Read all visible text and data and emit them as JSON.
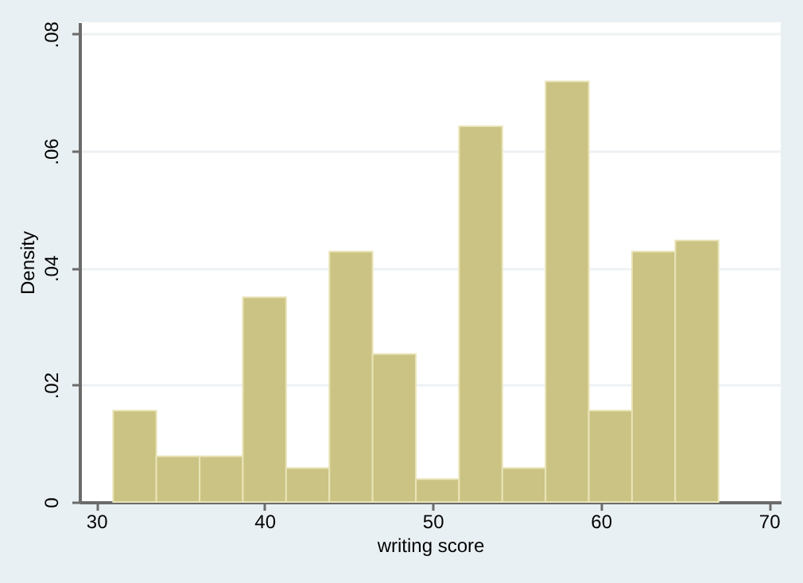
{
  "chart_data": {
    "type": "histogram",
    "xlabel": "writing score",
    "ylabel": "Density",
    "bins": [
      31,
      33.571,
      36.143,
      38.714,
      41.286,
      43.857,
      46.429,
      49,
      51.571,
      54.143,
      56.714,
      59.286,
      61.857,
      64.429,
      67
    ],
    "values": [
      0.0156,
      0.0078,
      0.0078,
      0.035,
      0.0058,
      0.0428,
      0.0253,
      0.0039,
      0.0642,
      0.0058,
      0.0719,
      0.0156,
      0.0428,
      0.0447
    ],
    "color": "#cbc383",
    "xlim": [
      29,
      70.7
    ],
    "xticks": [
      30,
      40,
      50,
      60,
      70
    ],
    "ylim": [
      0,
      0.082
    ],
    "yticks": [
      {
        "value": 0,
        "label": "0"
      },
      {
        "value": 0.02,
        "label": ".02"
      },
      {
        "value": 0.04,
        "label": ".04"
      },
      {
        "value": 0.06,
        "label": ".06"
      },
      {
        "value": 0.08,
        "label": ".08"
      }
    ],
    "grid": "y"
  }
}
